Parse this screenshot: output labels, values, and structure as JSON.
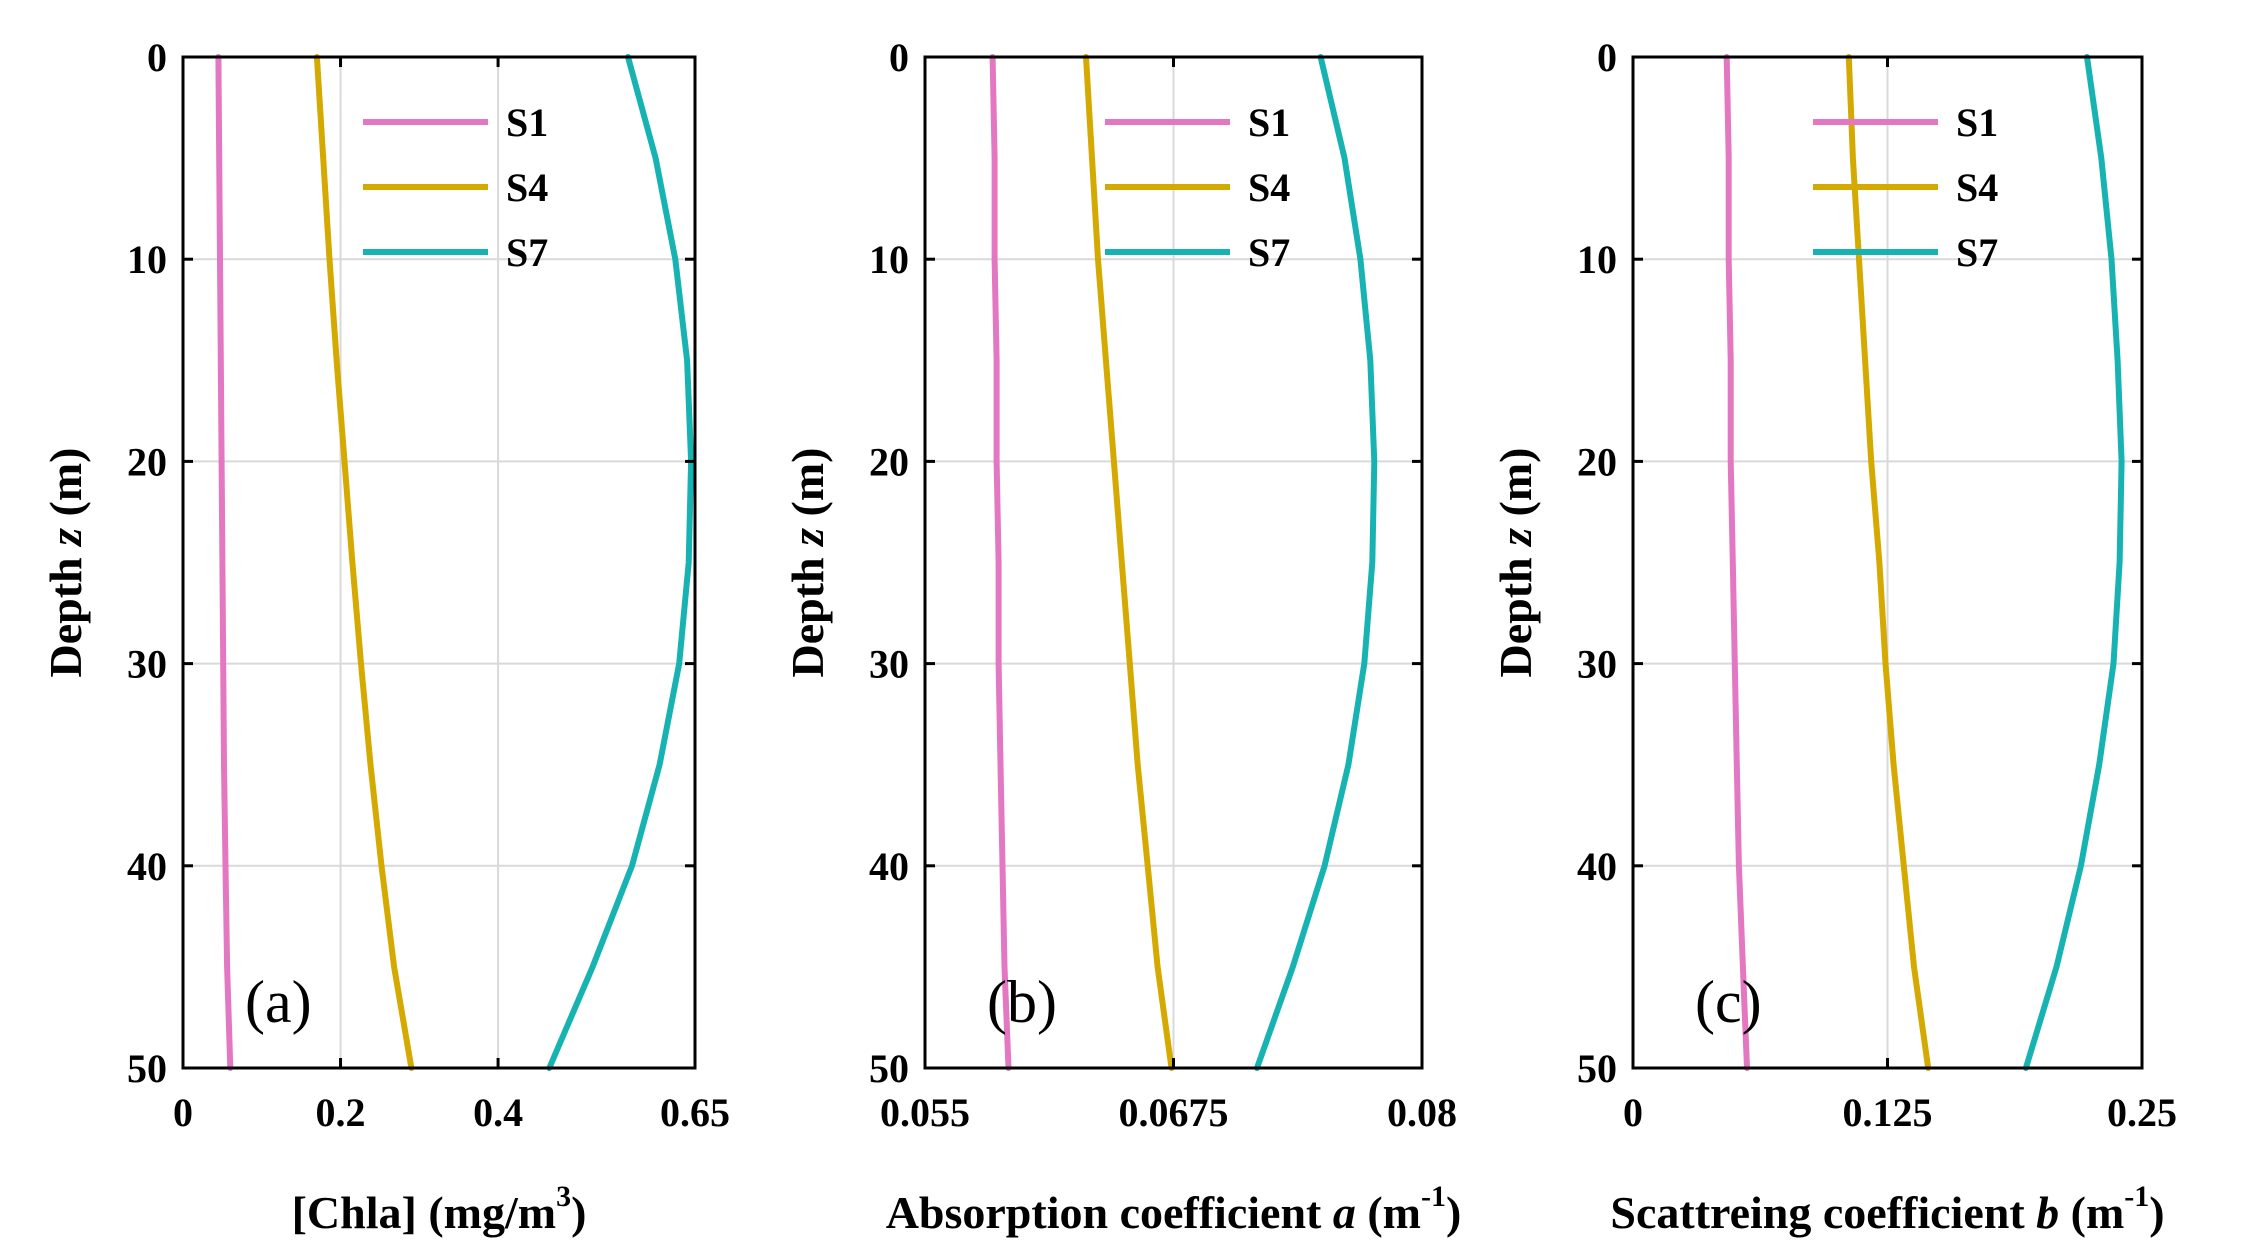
{
  "chart_data": [
    {
      "type": "line",
      "panel_label": "(a)",
      "xlabel": "[Chla] (mg/m³)",
      "xlabel_parts": [
        "[Chla] (mg/m",
        "3",
        ")"
      ],
      "ylabel": "Depth z (m)",
      "ylabel_parts": [
        "Depth ",
        "z",
        " (m)"
      ],
      "xlim": [
        0,
        0.65
      ],
      "xticks": [
        0,
        0.2,
        0.4,
        0.65
      ],
      "xtick_labels": [
        "0",
        "0.2",
        "0.4",
        "0.65"
      ],
      "ylim": [
        0,
        50
      ],
      "y_reversed": true,
      "yticks": [
        0,
        10,
        20,
        30,
        40,
        50
      ],
      "ytick_labels": [
        "0",
        "10",
        "20",
        "30",
        "40",
        "50"
      ],
      "grid": true,
      "legend": "top-right",
      "x": [
        0,
        5,
        10,
        15,
        20,
        25,
        30,
        35,
        40,
        45,
        50
      ],
      "series": [
        {
          "name": "S1",
          "color": "#e377c2",
          "values": [
            0.045,
            0.046,
            0.047,
            0.048,
            0.049,
            0.05,
            0.051,
            0.052,
            0.054,
            0.056,
            0.06
          ]
        },
        {
          "name": "S4",
          "color": "#d4a900",
          "values": [
            0.17,
            0.178,
            0.186,
            0.195,
            0.205,
            0.215,
            0.226,
            0.238,
            0.252,
            0.268,
            0.29
          ]
        },
        {
          "name": "S7",
          "color": "#17b3b3",
          "values": [
            0.565,
            0.6,
            0.625,
            0.64,
            0.645,
            0.642,
            0.63,
            0.605,
            0.57,
            0.52,
            0.465
          ]
        }
      ]
    },
    {
      "type": "line",
      "panel_label": "(b)",
      "xlabel": "Absorption coefficient a (m⁻¹)",
      "xlabel_parts": [
        "Absorption coefficient ",
        "a",
        " (m",
        "-1",
        ")"
      ],
      "ylabel": "Depth z (m)",
      "ylabel_parts": [
        "Depth ",
        "z",
        " (m)"
      ],
      "xlim": [
        0.055,
        0.08
      ],
      "xticks": [
        0.055,
        0.0675,
        0.08
      ],
      "xtick_labels": [
        "0.055",
        "0.0675",
        "0.08"
      ],
      "ylim": [
        0,
        50
      ],
      "y_reversed": true,
      "yticks": [
        0,
        10,
        20,
        30,
        40,
        50
      ],
      "ytick_labels": [
        "0",
        "10",
        "20",
        "30",
        "40",
        "50"
      ],
      "grid": true,
      "legend": "top-right",
      "x": [
        0,
        5,
        10,
        15,
        20,
        25,
        30,
        35,
        40,
        45,
        50
      ],
      "series": [
        {
          "name": "S1",
          "color": "#e377c2",
          "values": [
            0.0584,
            0.0585,
            0.0585,
            0.0586,
            0.0586,
            0.0587,
            0.0587,
            0.0588,
            0.0589,
            0.059,
            0.0592
          ]
        },
        {
          "name": "S4",
          "color": "#d4a900",
          "values": [
            0.0631,
            0.0634,
            0.0637,
            0.0641,
            0.0645,
            0.0649,
            0.0653,
            0.0657,
            0.0662,
            0.0667,
            0.0674
          ]
        },
        {
          "name": "S7",
          "color": "#17b3b3",
          "values": [
            0.0749,
            0.0761,
            0.0769,
            0.0774,
            0.0776,
            0.0775,
            0.0771,
            0.0763,
            0.0751,
            0.0735,
            0.0717
          ]
        }
      ]
    },
    {
      "type": "line",
      "panel_label": "(c)",
      "xlabel": "Scattreing coefficient b (m⁻¹)",
      "xlabel_parts": [
        "Scattreing coefficient ",
        "b",
        " (m",
        "-1",
        ")"
      ],
      "ylabel": "Depth z (m)",
      "ylabel_parts": [
        "Depth ",
        "z",
        " (m)"
      ],
      "xlim": [
        0,
        0.25
      ],
      "xticks": [
        0,
        0.125,
        0.25
      ],
      "xtick_labels": [
        "0",
        "0.125",
        "0.25"
      ],
      "ylim": [
        0,
        50
      ],
      "y_reversed": true,
      "yticks": [
        0,
        10,
        20,
        30,
        40,
        50
      ],
      "ytick_labels": [
        "0",
        "10",
        "20",
        "30",
        "40",
        "50"
      ],
      "grid": true,
      "legend": "top-right",
      "x": [
        0,
        5,
        10,
        15,
        20,
        25,
        30,
        35,
        40,
        45,
        50
      ],
      "series": [
        {
          "name": "S1",
          "color": "#e377c2",
          "values": [
            0.046,
            0.047,
            0.047,
            0.048,
            0.048,
            0.049,
            0.05,
            0.051,
            0.052,
            0.054,
            0.056
          ]
        },
        {
          "name": "S4",
          "color": "#d4a900",
          "values": [
            0.106,
            0.108,
            0.111,
            0.114,
            0.117,
            0.121,
            0.124,
            0.128,
            0.133,
            0.138,
            0.145
          ]
        },
        {
          "name": "S7",
          "color": "#17b3b3",
          "values": [
            0.223,
            0.23,
            0.235,
            0.238,
            0.24,
            0.239,
            0.236,
            0.229,
            0.22,
            0.208,
            0.193
          ]
        }
      ]
    }
  ]
}
